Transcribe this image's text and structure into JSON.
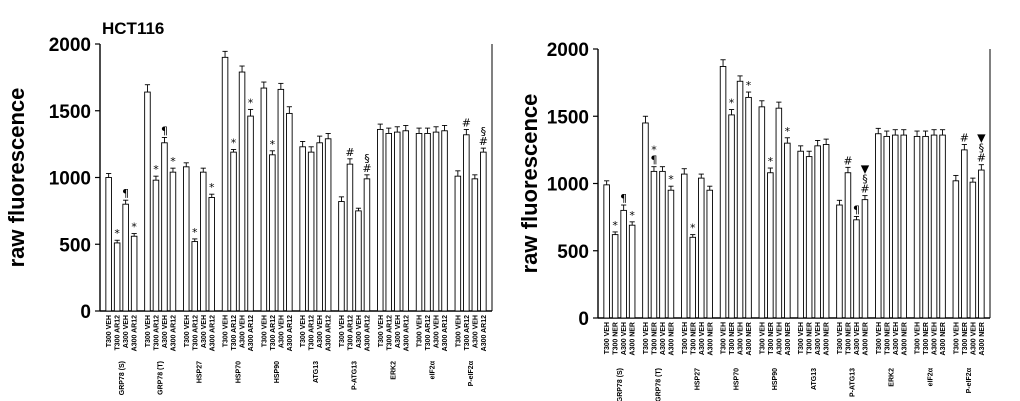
{
  "chart_data": [
    {
      "type": "bar",
      "title": "HCT116",
      "ylabel": "raw fluorescence",
      "xlabel": "",
      "ylim": [
        0,
        2000
      ],
      "yticks": [
        "0",
        "500",
        "1000",
        "1500",
        "2000"
      ],
      "groups": [
        {
          "name": "GRP78 (S)",
          "bars": [
            {
              "label": "T300 VEH",
              "value": 1000,
              "err": 30,
              "ann": ""
            },
            {
              "label": "T300 AR12",
              "value": 510,
              "err": 20,
              "ann": "*"
            },
            {
              "label": "A300 VEH",
              "value": 800,
              "err": 30,
              "ann": "¶"
            },
            {
              "label": "A300 AR12",
              "value": 560,
              "err": 20,
              "ann": "*"
            }
          ]
        },
        {
          "name": "GRP78 (T)",
          "bars": [
            {
              "label": "T300 VEH",
              "value": 1640,
              "err": 55,
              "ann": ""
            },
            {
              "label": "T300 AR12",
              "value": 980,
              "err": 30,
              "ann": "*"
            },
            {
              "label": "A300 VEH",
              "value": 1260,
              "err": 40,
              "ann": "¶"
            },
            {
              "label": "A300 AR12",
              "value": 1040,
              "err": 30,
              "ann": "*"
            }
          ]
        },
        {
          "name": "HSP27",
          "bars": [
            {
              "label": "T300 VEH",
              "value": 1080,
              "err": 30,
              "ann": ""
            },
            {
              "label": "T300 AR12",
              "value": 520,
              "err": 20,
              "ann": "*"
            },
            {
              "label": "A300 VEH",
              "value": 1040,
              "err": 30,
              "ann": ""
            },
            {
              "label": "A300 AR12",
              "value": 850,
              "err": 25,
              "ann": "*"
            }
          ]
        },
        {
          "name": "HSP70",
          "bars": [
            {
              "label": "T300 VEH",
              "value": 1900,
              "err": 45,
              "ann": ""
            },
            {
              "label": "T300 AR12",
              "value": 1190,
              "err": 20,
              "ann": "*"
            },
            {
              "label": "A300 VEH",
              "value": 1790,
              "err": 45,
              "ann": ""
            },
            {
              "label": "A300 AR12",
              "value": 1460,
              "err": 50,
              "ann": "*"
            }
          ]
        },
        {
          "name": "HSP90",
          "bars": [
            {
              "label": "T300 VEH",
              "value": 1670,
              "err": 45,
              "ann": ""
            },
            {
              "label": "T300 AR12",
              "value": 1170,
              "err": 30,
              "ann": "*"
            },
            {
              "label": "A300 VEH",
              "value": 1660,
              "err": 45,
              "ann": ""
            },
            {
              "label": "A300 AR12",
              "value": 1480,
              "err": 50,
              "ann": ""
            }
          ]
        },
        {
          "name": "ATG13",
          "bars": [
            {
              "label": "T300 VEH",
              "value": 1230,
              "err": 40,
              "ann": ""
            },
            {
              "label": "T300 AR12",
              "value": 1190,
              "err": 40,
              "ann": ""
            },
            {
              "label": "A300 VEH",
              "value": 1260,
              "err": 50,
              "ann": ""
            },
            {
              "label": "A300 AR12",
              "value": 1290,
              "err": 40,
              "ann": ""
            }
          ]
        },
        {
          "name": "P-ATG13",
          "bars": [
            {
              "label": "T300 VEH",
              "value": 820,
              "err": 35,
              "ann": ""
            },
            {
              "label": "T300 AR12",
              "value": 1100,
              "err": 40,
              "ann": "#"
            },
            {
              "label": "A300 VEH",
              "value": 750,
              "err": 20,
              "ann": ""
            },
            {
              "label": "A300 AR12",
              "value": 990,
              "err": 30,
              "ann": "§#"
            }
          ]
        },
        {
          "name": "ERK2",
          "bars": [
            {
              "label": "T300 VEH",
              "value": 1360,
              "err": 40,
              "ann": ""
            },
            {
              "label": "T300 AR12",
              "value": 1330,
              "err": 40,
              "ann": ""
            },
            {
              "label": "A300 VEH",
              "value": 1340,
              "err": 40,
              "ann": ""
            },
            {
              "label": "A300 AR12",
              "value": 1350,
              "err": 40,
              "ann": ""
            }
          ]
        },
        {
          "name": "eIF2α",
          "bars": [
            {
              "label": "T300 VEH",
              "value": 1330,
              "err": 40,
              "ann": ""
            },
            {
              "label": "T300 AR12",
              "value": 1330,
              "err": 40,
              "ann": ""
            },
            {
              "label": "A300 VEH",
              "value": 1340,
              "err": 40,
              "ann": ""
            },
            {
              "label": "A300 AR12",
              "value": 1350,
              "err": 40,
              "ann": ""
            }
          ]
        },
        {
          "name": "P-eIF2α",
          "bars": [
            {
              "label": "T300 VEH",
              "value": 1010,
              "err": 40,
              "ann": ""
            },
            {
              "label": "T300 AR12",
              "value": 1320,
              "err": 40,
              "ann": "#"
            },
            {
              "label": "A300 VEH",
              "value": 990,
              "err": 30,
              "ann": ""
            },
            {
              "label": "A300 AR12",
              "value": 1190,
              "err": 30,
              "ann": "§#"
            }
          ]
        }
      ]
    },
    {
      "type": "bar",
      "title": "",
      "ylabel": "raw fluorescence",
      "xlabel": "",
      "ylim": [
        0,
        2000
      ],
      "yticks": [
        "0",
        "500",
        "1000",
        "1500",
        "2000"
      ],
      "groups": [
        {
          "name": "GRP78 (S)",
          "bars": [
            {
              "label": "T300 VEH",
              "value": 990,
              "err": 30,
              "ann": ""
            },
            {
              "label": "T300 NER",
              "value": 620,
              "err": 20,
              "ann": "*"
            },
            {
              "label": "A300 VEH",
              "value": 800,
              "err": 40,
              "ann": "¶"
            },
            {
              "label": "A300 NER",
              "value": 690,
              "err": 25,
              "ann": "*"
            }
          ]
        },
        {
          "name": "GRP78 (T)",
          "bars": [
            {
              "label": "T300 VEH",
              "value": 1450,
              "err": 50,
              "ann": ""
            },
            {
              "label": "T300 NER",
              "value": 1090,
              "err": 35,
              "ann": "*¶"
            },
            {
              "label": "A300 VEH",
              "value": 1090,
              "err": 35,
              "ann": ""
            },
            {
              "label": "A300 NER",
              "value": 950,
              "err": 30,
              "ann": "*"
            }
          ]
        },
        {
          "name": "HSP27",
          "bars": [
            {
              "label": "T300 VEH",
              "value": 1070,
              "err": 40,
              "ann": ""
            },
            {
              "label": "T300 NER",
              "value": 600,
              "err": 20,
              "ann": "*"
            },
            {
              "label": "A300 VEH",
              "value": 1040,
              "err": 30,
              "ann": ""
            },
            {
              "label": "A300 NER",
              "value": 950,
              "err": 30,
              "ann": ""
            }
          ]
        },
        {
          "name": "HSP70",
          "bars": [
            {
              "label": "T300 VEH",
              "value": 1870,
              "err": 50,
              "ann": ""
            },
            {
              "label": "T300 NER",
              "value": 1510,
              "err": 40,
              "ann": "*"
            },
            {
              "label": "A300 VEH",
              "value": 1760,
              "err": 40,
              "ann": ""
            },
            {
              "label": "A300 NER",
              "value": 1640,
              "err": 40,
              "ann": "*"
            }
          ]
        },
        {
          "name": "HSP90",
          "bars": [
            {
              "label": "T300 VEH",
              "value": 1570,
              "err": 45,
              "ann": ""
            },
            {
              "label": "T300 NER",
              "value": 1080,
              "err": 35,
              "ann": "*"
            },
            {
              "label": "A300 VEH",
              "value": 1560,
              "err": 45,
              "ann": ""
            },
            {
              "label": "A300 NER",
              "value": 1300,
              "err": 40,
              "ann": "*"
            }
          ]
        },
        {
          "name": "ATG13",
          "bars": [
            {
              "label": "T300 VEH",
              "value": 1240,
              "err": 40,
              "ann": ""
            },
            {
              "label": "T300 NER",
              "value": 1200,
              "err": 40,
              "ann": ""
            },
            {
              "label": "A300 VEH",
              "value": 1280,
              "err": 40,
              "ann": ""
            },
            {
              "label": "A300 NER",
              "value": 1290,
              "err": 40,
              "ann": ""
            }
          ]
        },
        {
          "name": "P-ATG13",
          "bars": [
            {
              "label": "T300 VEH",
              "value": 840,
              "err": 35,
              "ann": ""
            },
            {
              "label": "T300 NER",
              "value": 1080,
              "err": 40,
              "ann": "#"
            },
            {
              "label": "A300 VEH",
              "value": 730,
              "err": 25,
              "ann": "¶"
            },
            {
              "label": "A300 NER",
              "value": 880,
              "err": 30,
              "ann": "▼§#"
            }
          ]
        },
        {
          "name": "ERK2",
          "bars": [
            {
              "label": "T300 VEH",
              "value": 1370,
              "err": 40,
              "ann": ""
            },
            {
              "label": "T300 NER",
              "value": 1350,
              "err": 40,
              "ann": ""
            },
            {
              "label": "A300 VEH",
              "value": 1360,
              "err": 40,
              "ann": ""
            },
            {
              "label": "A300 NER",
              "value": 1360,
              "err": 40,
              "ann": ""
            }
          ]
        },
        {
          "name": "eIF2α",
          "bars": [
            {
              "label": "T300 VEH",
              "value": 1350,
              "err": 40,
              "ann": ""
            },
            {
              "label": "T300 NER",
              "value": 1350,
              "err": 40,
              "ann": ""
            },
            {
              "label": "A300 VEH",
              "value": 1360,
              "err": 40,
              "ann": ""
            },
            {
              "label": "A300 NER",
              "value": 1360,
              "err": 40,
              "ann": ""
            }
          ]
        },
        {
          "name": "P-eIF2α",
          "bars": [
            {
              "label": "T300 VEH",
              "value": 1020,
              "err": 40,
              "ann": ""
            },
            {
              "label": "T300 NER",
              "value": 1250,
              "err": 40,
              "ann": "#"
            },
            {
              "label": "A300 VEH",
              "value": 1010,
              "err": 30,
              "ann": ""
            },
            {
              "label": "A300 NER",
              "value": 1100,
              "err": 40,
              "ann": "▼§#"
            }
          ]
        }
      ]
    }
  ]
}
